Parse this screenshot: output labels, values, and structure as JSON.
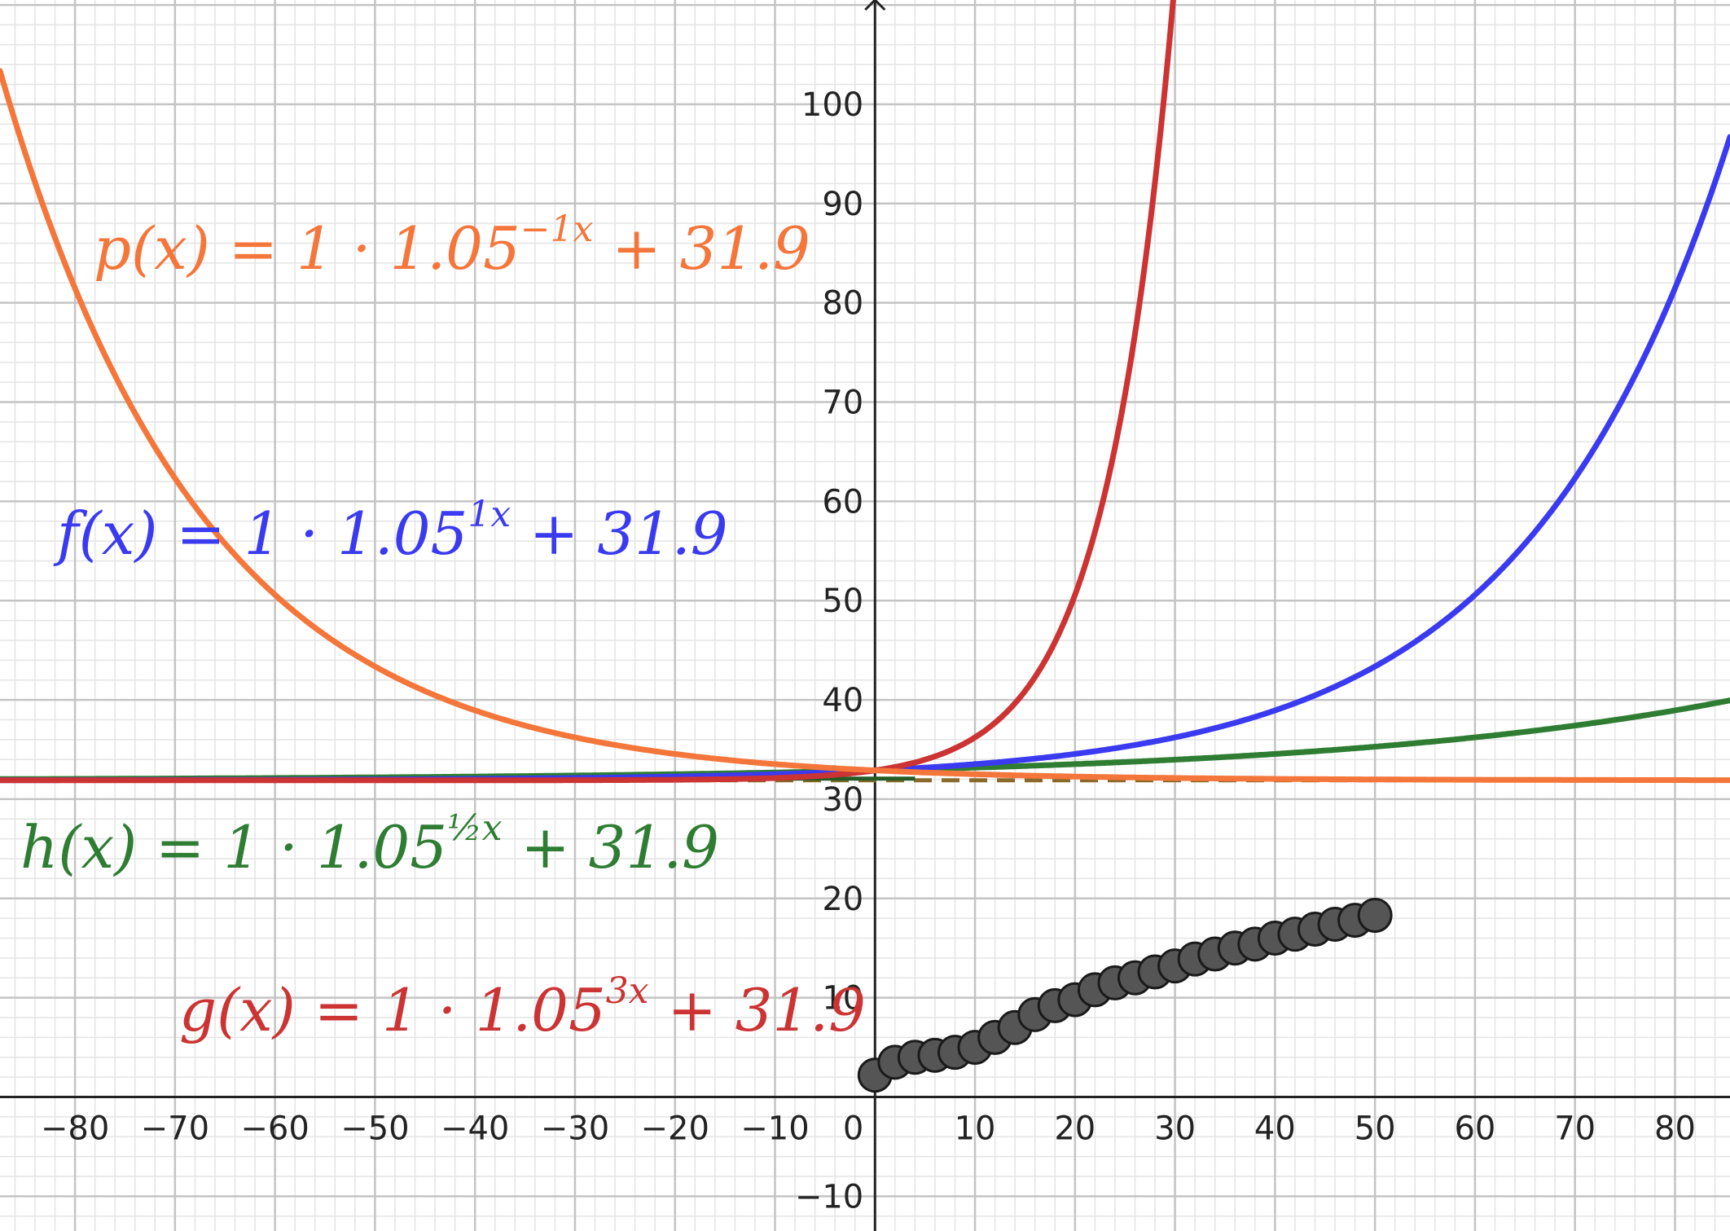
{
  "chart_data": {
    "type": "line",
    "xlim": [
      -87.5,
      85.5
    ],
    "ylim": [
      -13.5,
      110.5
    ],
    "grid": true,
    "minor_grid": true,
    "x_ticks": [
      -80,
      -70,
      -60,
      -50,
      -40,
      -30,
      -20,
      -10,
      10,
      20,
      30,
      40,
      50,
      60,
      70,
      80
    ],
    "y_ticks": [
      -10,
      10,
      20,
      30,
      40,
      50,
      60,
      70,
      80,
      90,
      100
    ],
    "origin_label": "0",
    "series": [
      {
        "name": "p(x)",
        "color": "#f4763a",
        "base": 1.05,
        "k": -1,
        "a": 1,
        "asymptote": 31.9,
        "label_parts": [
          "p(x) = 1 · 1.05",
          "−1x",
          " + 31.9"
        ]
      },
      {
        "name": "f(x)",
        "color": "#3a3af0",
        "base": 1.05,
        "k": 1,
        "a": 1,
        "asymptote": 31.9,
        "label_parts": [
          "f(x) = 1 · 1.05",
          "1x",
          " + 31.9"
        ]
      },
      {
        "name": "h(x)",
        "color": "#2e7d32",
        "base": 1.05,
        "k": 0.5,
        "a": 1,
        "asymptote": 31.9,
        "label_parts": [
          "h(x) = 1 · 1.05",
          "½x",
          " + 31.9"
        ]
      },
      {
        "name": "g(x)",
        "color": "#cc3333",
        "base": 1.05,
        "k": 3,
        "a": 1,
        "asymptote": 31.9,
        "label_parts": [
          "g(x) = 1 · 1.05",
          "3x",
          " + 31.9"
        ]
      }
    ],
    "points": {
      "color": "#555555",
      "x": [
        0,
        2,
        4,
        6,
        8,
        10,
        12,
        14,
        16,
        18,
        20,
        22,
        24,
        26,
        28,
        30,
        32,
        34,
        36,
        38,
        40,
        42,
        44,
        46,
        48,
        50
      ],
      "y": [
        2.2,
        3.5,
        4.0,
        4.2,
        4.5,
        5.0,
        6.0,
        7.0,
        8.3,
        9.2,
        9.8,
        10.8,
        11.5,
        12.0,
        12.6,
        13.2,
        13.9,
        14.4,
        15.0,
        15.4,
        16.0,
        16.4,
        16.9,
        17.4,
        17.8,
        18.3
      ]
    }
  }
}
